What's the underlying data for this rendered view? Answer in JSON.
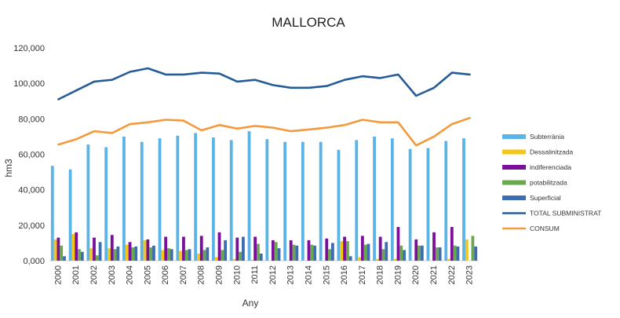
{
  "chart_data": {
    "type": "bar",
    "title": "MALLORCA",
    "xlabel": "Any",
    "ylabel": "hm3",
    "ylim": [
      0,
      120000
    ],
    "yticks": [
      0,
      20000,
      40000,
      60000,
      80000,
      100000,
      120000
    ],
    "ytick_labels": [
      "0,000",
      "20,000",
      "40,000",
      "60,000",
      "80,000",
      "100,000",
      "120,000"
    ],
    "grid": false,
    "legend_position": "right",
    "categories": [
      "2000",
      "2001",
      "2002",
      "2003",
      "2004",
      "2005",
      "2006",
      "2007",
      "2008",
      "2009",
      "2010",
      "2011",
      "2012",
      "2013",
      "2014",
      "2015",
      "2016",
      "2017",
      "2018",
      "2019",
      "2020",
      "2021",
      "2022",
      "2023"
    ],
    "series": [
      {
        "name": "Subterrània",
        "kind": "bar",
        "color": "#5ab4e8",
        "values": [
          53500,
          51500,
          65500,
          64000,
          70000,
          67000,
          69000,
          70500,
          72000,
          69500,
          68000,
          73000,
          68500,
          67000,
          67000,
          67000,
          62500,
          68000,
          70000,
          69000,
          63000,
          63500,
          67500,
          69000
        ]
      },
      {
        "name": "Dessalinitzada",
        "kind": "bar",
        "color": "#f5c518",
        "values": [
          12000,
          15000,
          7000,
          7000,
          9000,
          11500,
          6000,
          5500,
          4000,
          2000,
          1000,
          500,
          0,
          0,
          0,
          0,
          11000,
          2000,
          1000,
          1000,
          0,
          0,
          1000,
          12000
        ]
      },
      {
        "name": "indiferenciada",
        "kind": "bar",
        "color": "#7b0f9c",
        "values": [
          13000,
          16000,
          13000,
          14500,
          10500,
          12000,
          13500,
          13500,
          14000,
          16000,
          13000,
          13500,
          11500,
          11500,
          11500,
          12500,
          13500,
          14000,
          13500,
          19000,
          12000,
          16000,
          19000,
          0
        ]
      },
      {
        "name": "potabilitzada",
        "kind": "bar",
        "color": "#6aa84f",
        "values": [
          8500,
          6500,
          3000,
          6500,
          7500,
          7500,
          7000,
          6000,
          6000,
          6000,
          5000,
          9500,
          10500,
          9000,
          9000,
          6500,
          11000,
          9000,
          6500,
          8500,
          8500,
          7500,
          8500,
          14000
        ]
      },
      {
        "name": "Superficial",
        "kind": "bar",
        "color": "#3d6cb0",
        "values": [
          2500,
          5000,
          10500,
          8000,
          8000,
          8500,
          6500,
          6500,
          7500,
          11500,
          13500,
          4000,
          7000,
          8500,
          8500,
          10000,
          2500,
          9500,
          10500,
          6000,
          8500,
          7500,
          8000,
          8000
        ]
      },
      {
        "name": "TOTAL SUBMINISTRAT",
        "kind": "line",
        "color": "#255b96",
        "values": [
          91000,
          96000,
          101000,
          102000,
          106500,
          108500,
          105000,
          105000,
          106000,
          105500,
          101000,
          102000,
          99000,
          97500,
          97500,
          98500,
          102000,
          104000,
          103000,
          105000,
          93000,
          97500,
          106000,
          105000
        ]
      },
      {
        "name": "CONSUM",
        "kind": "line",
        "color": "#f39a3e",
        "values": [
          65500,
          68500,
          73000,
          72000,
          77000,
          78000,
          79500,
          79000,
          73500,
          76500,
          74500,
          76000,
          75000,
          73000,
          74000,
          75000,
          76500,
          79500,
          78000,
          78000,
          65000,
          70000,
          77000,
          80500
        ]
      }
    ]
  }
}
